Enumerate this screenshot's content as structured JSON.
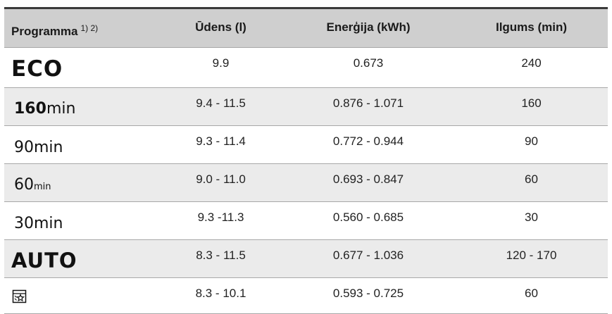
{
  "header": {
    "program": "Programma",
    "program_sup": "1) 2)",
    "water": "Ūdens (l)",
    "energy": "Enerģija (kWh)",
    "duration": "Ilgums (min)"
  },
  "rows": [
    {
      "program": "ECO",
      "water": "9.9",
      "energy": "0.673",
      "duration": "240"
    },
    {
      "program_bold": "160",
      "program_suffix": "min",
      "water": "9.4 - 11.5",
      "energy": "0.876 - 1.071",
      "duration": "160"
    },
    {
      "program": "90min",
      "water": "9.3 - 11.4",
      "energy": "0.772 - 0.944",
      "duration": "90"
    },
    {
      "program_main": "60",
      "program_small": "min",
      "water": "9.0 - 11.0",
      "energy": "0.693 - 0.847",
      "duration": "60"
    },
    {
      "program": "30min",
      "water": "9.3 -11.3",
      "energy": "0.560 - 0.685",
      "duration": "30"
    },
    {
      "program": "AUTO",
      "water": "8.3 - 11.5",
      "energy": "0.677 - 1.036",
      "duration": "120 - 170"
    },
    {
      "program_icon": "machine-care-icon",
      "water": "8.3 - 10.1",
      "energy": "0.593 - 0.725",
      "duration": "60"
    }
  ]
}
